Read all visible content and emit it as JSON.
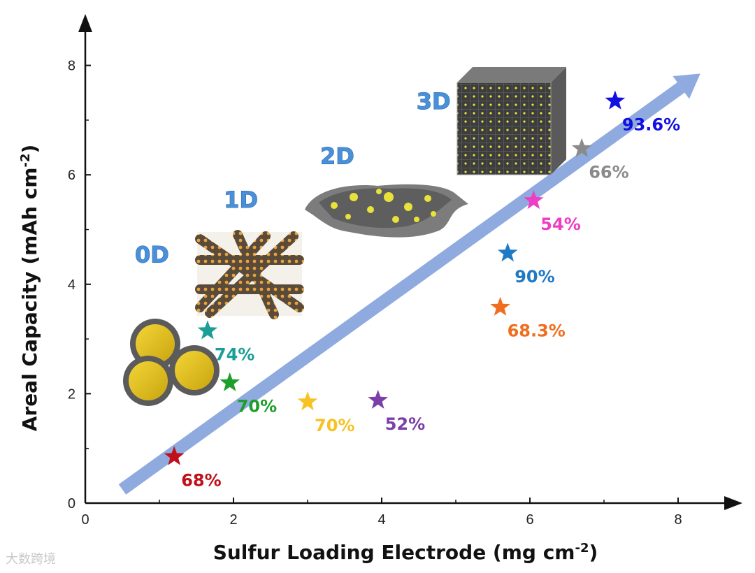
{
  "chart_data": {
    "type": "scatter",
    "xlabel": "Sulfur Loading Electrode (mg cm",
    "xlabel_sup": "-2",
    "xlabel_end": ")",
    "ylabel": "Areal Capacity (mAh cm",
    "ylabel_sup": "-2",
    "ylabel_end": ")",
    "xlim": [
      0,
      8.9
    ],
    "ylim": [
      0,
      8.9
    ],
    "x_ticks": [
      "0",
      "2",
      "4",
      "6",
      "8"
    ],
    "y_ticks": [
      "0",
      "2",
      "4",
      "6",
      "8"
    ],
    "grid": false,
    "trend_arrow": {
      "from": [
        0.5,
        0.25
      ],
      "to": [
        8.3,
        7.85
      ],
      "color": "#8eaadf"
    },
    "dimension_labels": [
      {
        "text": "0D",
        "x": 0.9,
        "y": 4.4
      },
      {
        "text": "1D",
        "x": 2.1,
        "y": 5.4
      },
      {
        "text": "2D",
        "x": 3.4,
        "y": 6.2
      },
      {
        "text": "3D",
        "x": 4.7,
        "y": 7.2
      }
    ],
    "points": [
      {
        "x": 1.2,
        "y": 0.85,
        "label": "68%",
        "color": "#c0101a"
      },
      {
        "x": 1.95,
        "y": 2.2,
        "label": "70%",
        "color": "#1e9e2a"
      },
      {
        "x": 1.65,
        "y": 3.15,
        "label": "74%",
        "color": "#1a9e96"
      },
      {
        "x": 3.0,
        "y": 1.85,
        "label": "70%",
        "color": "#f6c224"
      },
      {
        "x": 3.95,
        "y": 1.88,
        "label": "52%",
        "color": "#7a3fa8"
      },
      {
        "x": 5.6,
        "y": 3.58,
        "label": "68.3%",
        "color": "#f06e1e"
      },
      {
        "x": 5.7,
        "y": 4.57,
        "label": "90%",
        "color": "#1f79c4"
      },
      {
        "x": 6.05,
        "y": 5.53,
        "label": "54%",
        "color": "#ee3fc4"
      },
      {
        "x": 6.7,
        "y": 6.48,
        "label": "66%",
        "color": "#8a8a8a"
      },
      {
        "x": 7.15,
        "y": 7.35,
        "label": "93.6%",
        "color": "#1010e0"
      }
    ]
  },
  "watermark": "大数跨境"
}
